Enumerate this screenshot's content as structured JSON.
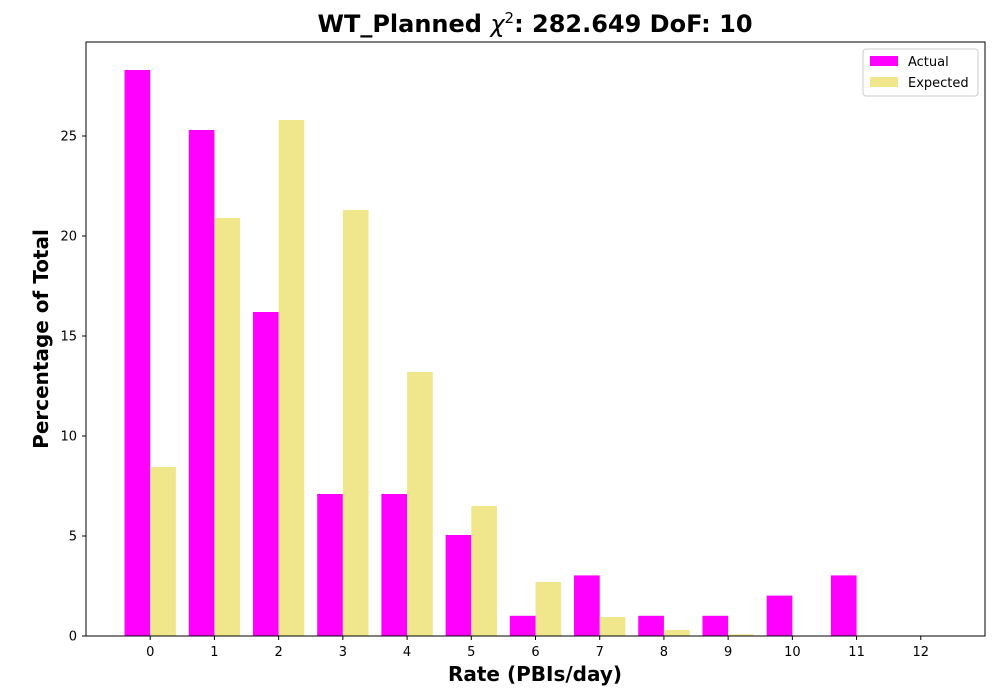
{
  "chart_data": {
    "type": "bar",
    "title_main": "WT_Planned ",
    "title_chi": "χ",
    "title_sup": "2",
    "title_rest": ": 282.649 DoF: 10",
    "xlabel": "Rate (PBIs/day)",
    "ylabel": "Percentage of Total",
    "categories": [
      "0",
      "1",
      "2",
      "3",
      "4",
      "5",
      "6",
      "7",
      "8",
      "9",
      "10",
      "11",
      "12"
    ],
    "xlim": [
      -1,
      13
    ],
    "ylim": [
      0,
      29.7
    ],
    "yticks": [
      0,
      5,
      10,
      15,
      20,
      25
    ],
    "legend_position": "top-right",
    "series": [
      {
        "name": "Actual",
        "color": "#ff00ff",
        "values": [
          28.3,
          25.3,
          16.2,
          7.1,
          7.1,
          5.05,
          1.01,
          3.03,
          1.01,
          1.01,
          2.02,
          3.03,
          0
        ]
      },
      {
        "name": "Expected",
        "color": "#f0e68c",
        "values": [
          8.45,
          20.9,
          25.8,
          21.3,
          13.2,
          6.5,
          2.7,
          0.95,
          0.3,
          0.08,
          0.02,
          0.0,
          0.0
        ]
      }
    ]
  }
}
